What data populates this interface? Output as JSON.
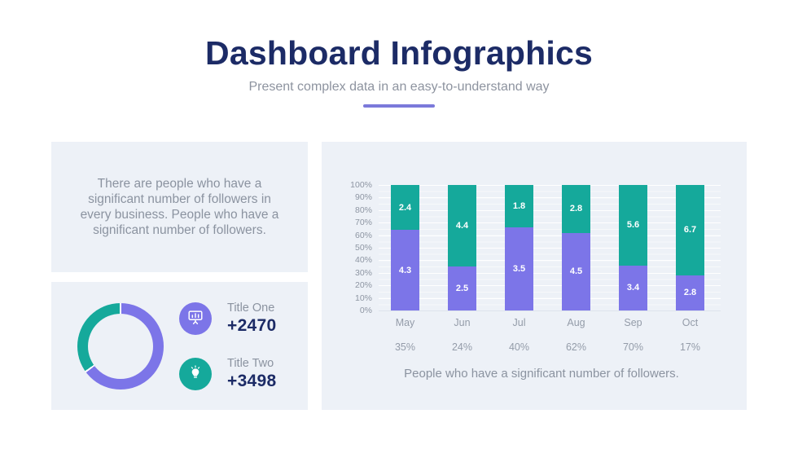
{
  "header": {
    "title": "Dashboard Infographics",
    "subtitle": "Present complex data in an easy-to-understand way"
  },
  "colors": {
    "navy": "#1c2b66",
    "purple": "#7c75e8",
    "teal": "#15a99b",
    "underline_accent": "#7b79da",
    "panel_bg": "#edf1f7",
    "gray_text": "#8b93a0"
  },
  "left_panel": {
    "paragraph": "There are people who have a significant number of followers in every business. People who have a significant number of followers."
  },
  "stats_panel": {
    "stats": [
      {
        "label": "Title One",
        "value": "+2470",
        "icon": "presentation-chart-icon",
        "color": "#7c75e8"
      },
      {
        "label": "Title Two",
        "value": "+3498",
        "icon": "lightbulb-icon",
        "color": "#15a99b"
      }
    ]
  },
  "chart_data": [
    {
      "type": "pie",
      "subtype": "donut",
      "labels": [
        "purple-segment",
        "teal-segment"
      ],
      "values": [
        65,
        35
      ],
      "colors": [
        "#7c75e8",
        "#15a99b"
      ],
      "start": "top",
      "note": "purple ~65% clockwise from top, teal ~35%; thin white gaps at boundaries"
    },
    {
      "type": "bar",
      "stacked": true,
      "categories": [
        "May",
        "Jun",
        "Jul",
        "Aug",
        "Sep",
        "Oct"
      ],
      "series": [
        {
          "name": "bottom-purple",
          "color": "#7c75e8",
          "data_labels": [
            "4.3",
            "2.5",
            "3.5",
            "4.5",
            "3.4",
            "2.8"
          ],
          "height_percent": [
            64,
            35,
            66,
            62,
            36,
            28
          ]
        },
        {
          "name": "top-teal",
          "color": "#15a99b",
          "data_labels": [
            "2.4",
            "4.4",
            "1.8",
            "2.8",
            "5.6",
            "6.7"
          ],
          "height_percent": [
            36,
            65,
            34,
            38,
            64,
            72
          ]
        }
      ],
      "category_percentages": [
        "35%",
        "24%",
        "40%",
        "62%",
        "70%",
        "17%"
      ],
      "y_ticks": [
        "100%",
        "90%",
        "80%",
        "70%",
        "60%",
        "50%",
        "40%",
        "30%",
        "20%",
        "10%",
        "0%"
      ],
      "ylim": [
        0,
        100
      ],
      "grid": true,
      "legend": "none",
      "caption": "People who have a significant number of followers."
    }
  ]
}
